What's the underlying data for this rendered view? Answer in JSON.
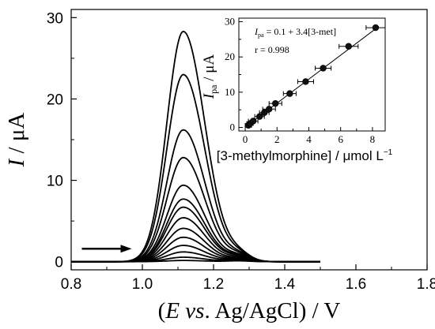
{
  "chart_data": [
    {
      "type": "line",
      "x_tick_labels": [
        "0.8",
        "1.0",
        "1.2",
        "1.4",
        "1.6",
        "1.8"
      ],
      "y_tick_labels": [
        "0",
        "10",
        "20",
        "30"
      ],
      "xlim": [
        0.8,
        1.8
      ],
      "ylim": [
        -1,
        31
      ],
      "xlabel": {
        "open": "(",
        "var": "E",
        "mid": " vs",
        "rest": ". Ag/AgCl) / V"
      },
      "ylabel": {
        "var": "I",
        "rest": " / μA"
      },
      "arrow": {
        "direction": "right",
        "x_from": 0.83,
        "x_to": 0.97,
        "y": 1.6
      },
      "curve_model": {
        "main_peak_center": 1.115,
        "left_width": 0.065,
        "right_width": 0.085,
        "shoulder_center": 1.27,
        "shoulder_width": 0.045,
        "x_start": 0.8,
        "x_end": 1.5
      },
      "series": [
        {
          "peak": 0.15,
          "shoulder": 0.1
        },
        {
          "peak": 0.55,
          "shoulder": 0.15
        },
        {
          "peak": 1.2,
          "shoulder": 0.2
        },
        {
          "peak": 2.0,
          "shoulder": 0.25
        },
        {
          "peak": 3.0,
          "shoulder": 0.3
        },
        {
          "peak": 4.1,
          "shoulder": 0.35
        },
        {
          "peak": 5.4,
          "shoulder": 0.45
        },
        {
          "peak": 6.7,
          "shoulder": 0.55
        },
        {
          "peak": 7.7,
          "shoulder": 0.6
        },
        {
          "peak": 9.4,
          "shoulder": 0.65
        },
        {
          "peak": 12.8,
          "shoulder": 0.75
        },
        {
          "peak": 16.2,
          "shoulder": 0.8
        },
        {
          "peak": 23.0,
          "shoulder": 0.85
        },
        {
          "peak": 28.3,
          "shoulder": 0.9
        }
      ]
    },
    {
      "type": "scatter",
      "x_tick_labels": [
        "0",
        "2",
        "4",
        "6",
        "8"
      ],
      "y_tick_labels": [
        "0",
        "10",
        "20",
        "30"
      ],
      "xlim": [
        -0.4,
        8.8
      ],
      "ylim": [
        -1,
        31
      ],
      "xlabel": {
        "main": "[3-methylmorphine] / μmol L",
        "sup": "−1"
      },
      "ylabel": {
        "var": "I",
        "sub": "pa",
        "rest": " / μA"
      },
      "equation": {
        "var": "I",
        "sub": "pa",
        "rest": " = 0.1 + 3.4[3-met]"
      },
      "r_text": "r = 0.998",
      "fit": {
        "slope": 3.4,
        "intercept": 0.1
      },
      "points": [
        {
          "x": 0.2,
          "y": 0.6,
          "err": 0.2
        },
        {
          "x": 0.3,
          "y": 1.1,
          "err": 0.2
        },
        {
          "x": 0.5,
          "y": 1.8,
          "err": 0.3
        },
        {
          "x": 0.9,
          "y": 3.1,
          "err": 0.3
        },
        {
          "x": 1.2,
          "y": 4.2,
          "err": 0.3
        },
        {
          "x": 1.5,
          "y": 5.2,
          "err": 0.4
        },
        {
          "x": 1.9,
          "y": 6.8,
          "err": 0.4
        },
        {
          "x": 2.8,
          "y": 9.6,
          "err": 0.4
        },
        {
          "x": 3.8,
          "y": 13.0,
          "err": 0.5
        },
        {
          "x": 4.9,
          "y": 16.8,
          "err": 0.5
        },
        {
          "x": 6.5,
          "y": 23.0,
          "err": 0.6
        },
        {
          "x": 8.2,
          "y": 28.3,
          "err": 0.6
        }
      ]
    }
  ]
}
